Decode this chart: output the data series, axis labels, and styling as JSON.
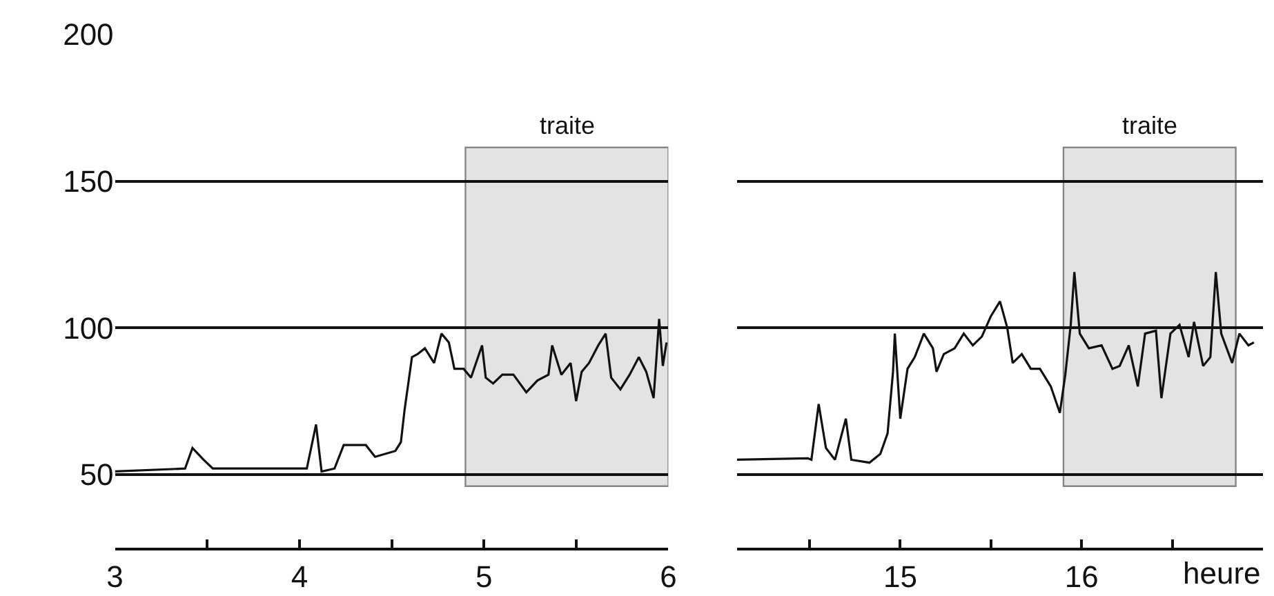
{
  "chart_data": [
    {
      "type": "line",
      "series": [
        {
          "color": "#111111",
          "x": [
            3.0,
            3.38,
            3.42,
            3.48,
            3.53,
            4.04,
            4.09,
            4.12,
            4.19,
            4.24,
            4.36,
            4.41,
            4.52,
            4.55,
            4.57,
            4.61,
            4.64,
            4.68,
            4.73,
            4.77,
            4.81,
            4.84,
            4.89,
            4.93,
            4.99,
            5.01,
            5.05,
            5.1,
            5.16,
            5.23,
            5.29,
            5.35,
            5.37,
            5.42,
            5.47,
            5.5,
            5.53,
            5.57,
            5.62,
            5.66,
            5.69,
            5.74,
            5.79,
            5.84,
            5.88,
            5.92,
            5.95,
            5.97,
            5.99
          ],
          "values": [
            51,
            52,
            59,
            55,
            52,
            52,
            67,
            51,
            52,
            60,
            60,
            56,
            58,
            61,
            72,
            90,
            91,
            93,
            88,
            98,
            95,
            86,
            86,
            83,
            94,
            83,
            81,
            84,
            84,
            78,
            82,
            84,
            94,
            84,
            88,
            75,
            85,
            88,
            94,
            98,
            83,
            79,
            84,
            90,
            85,
            76,
            103,
            87,
            95
          ]
        }
      ],
      "xlim": [
        3,
        6
      ],
      "xticks": [
        3,
        {
          "value": 3.5,
          "label": null
        },
        4,
        {
          "value": 4.5,
          "label": null
        },
        5,
        {
          "value": 5.5,
          "label": null
        },
        6
      ],
      "ylim": [
        25,
        200
      ],
      "yticks": [
        50,
        100,
        150,
        200
      ],
      "grid": "y",
      "bands": [
        {
          "axis": "x",
          "from": 4.9,
          "to": 6.0,
          "label": "traite",
          "color": "#c8c8c8"
        }
      ]
    },
    {
      "type": "line",
      "series": [
        {
          "color": "#111111",
          "x": [
            14.1,
            14.49,
            14.51,
            14.55,
            14.59,
            14.64,
            14.7,
            14.73,
            14.83,
            14.89,
            14.93,
            14.96,
            14.97,
            15.0,
            15.04,
            15.08,
            15.13,
            15.18,
            15.2,
            15.24,
            15.3,
            15.35,
            15.4,
            15.45,
            15.5,
            15.55,
            15.59,
            15.62,
            15.67,
            15.72,
            15.77,
            15.83,
            15.88,
            15.91,
            15.94,
            15.96,
            15.99,
            16.04,
            16.11,
            16.17,
            16.21,
            16.26,
            16.31,
            16.35,
            16.41,
            16.44,
            16.49,
            16.54,
            16.59,
            16.62,
            16.67,
            16.71,
            16.74,
            16.77,
            16.83,
            16.87,
            16.92,
            16.95
          ],
          "values": [
            55,
            55.5,
            55,
            74,
            59,
            55,
            69,
            55,
            54,
            57,
            64,
            85,
            98,
            69,
            86,
            90,
            98,
            93,
            85,
            91,
            93,
            98,
            94,
            97,
            104,
            109,
            100,
            88,
            91,
            86,
            86,
            80,
            71,
            84,
            101,
            119,
            98,
            93,
            94,
            86,
            87,
            94,
            80,
            98,
            99,
            76,
            98,
            101,
            90,
            102,
            87,
            90,
            119,
            98,
            88,
            98,
            94,
            95
          ]
        }
      ],
      "xlim": [
        14.1,
        17
      ],
      "xticks": [
        {
          "value": 14.5,
          "label": null
        },
        15,
        {
          "value": 15.5,
          "label": null
        },
        16,
        {
          "value": 16.5,
          "label": null
        }
      ],
      "xlabel": "heure",
      "ylim": [
        25,
        200
      ],
      "yticks": [
        50,
        100,
        150,
        200
      ],
      "grid": "y",
      "tick_labels": "x",
      "bands": [
        {
          "axis": "x",
          "from": 15.9,
          "to": 16.85,
          "label": "traite",
          "color": "#c8c8c8"
        }
      ]
    }
  ]
}
